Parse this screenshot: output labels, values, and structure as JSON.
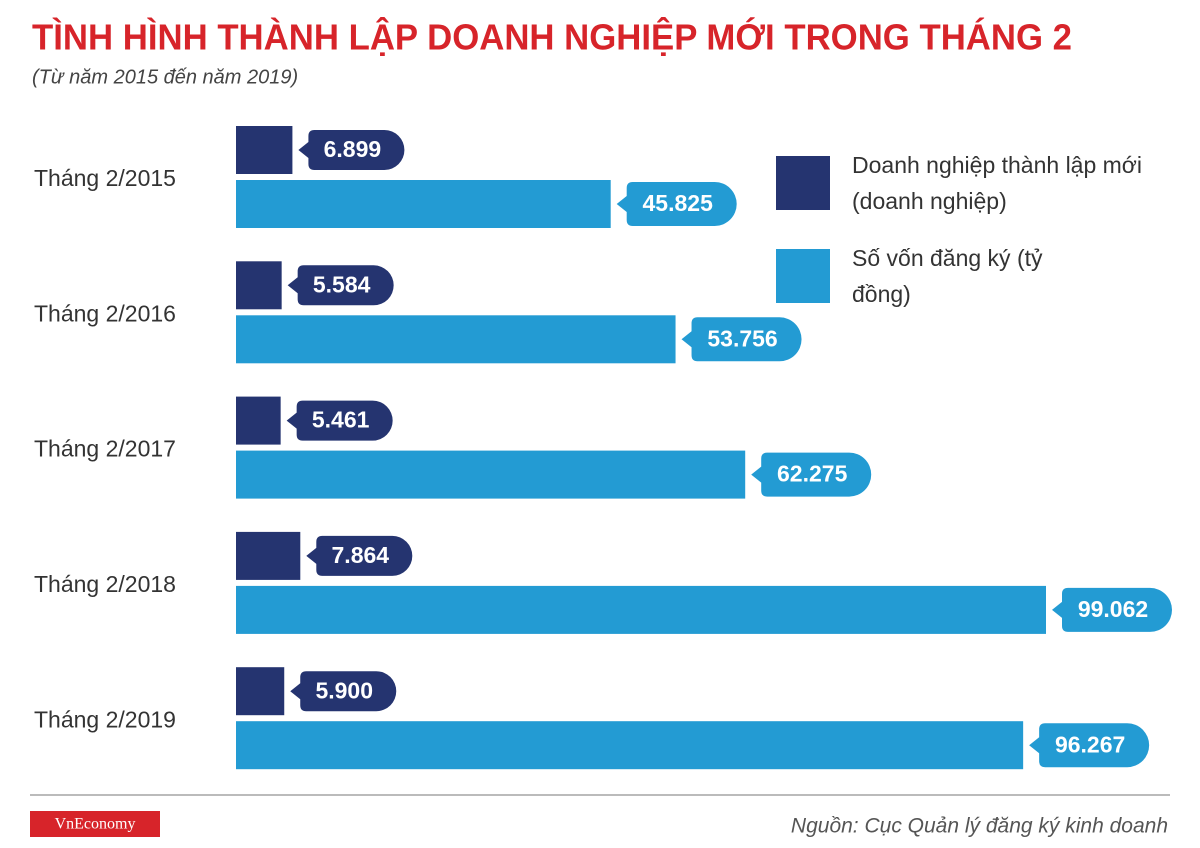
{
  "chart_data": {
    "type": "bar",
    "title": "TÌNH HÌNH THÀNH LẬP DOANH NGHIỆP MỚI TRONG THÁNG 2",
    "subtitle": "(Từ năm 2015 đến năm 2019)",
    "categories": [
      "Tháng 2/2015",
      "Tháng 2/2016",
      "Tháng 2/2017",
      "Tháng 2/2018",
      "Tháng 2/2019"
    ],
    "series": [
      {
        "name": "Doanh nghiệp thành lập mới (doanh nghiệp)",
        "color": "#253470",
        "values": [
          6899,
          5584,
          5461,
          7864,
          5900
        ],
        "value_labels": [
          "6.899",
          "5.584",
          "5.461",
          "7.864",
          "5.900"
        ]
      },
      {
        "name": "Số vốn đăng ký (tỷ đồng)",
        "color": "#239bd3",
        "values": [
          45825,
          53756,
          62275,
          99062,
          96267
        ],
        "value_labels": [
          "45.825",
          "53.756",
          "62.275",
          "99.062",
          "96.267"
        ]
      }
    ],
    "legend": "top-right",
    "source": "Nguồn: Cục Quản lý đăng ký kinh doanh",
    "logo": "VnEconomy"
  }
}
